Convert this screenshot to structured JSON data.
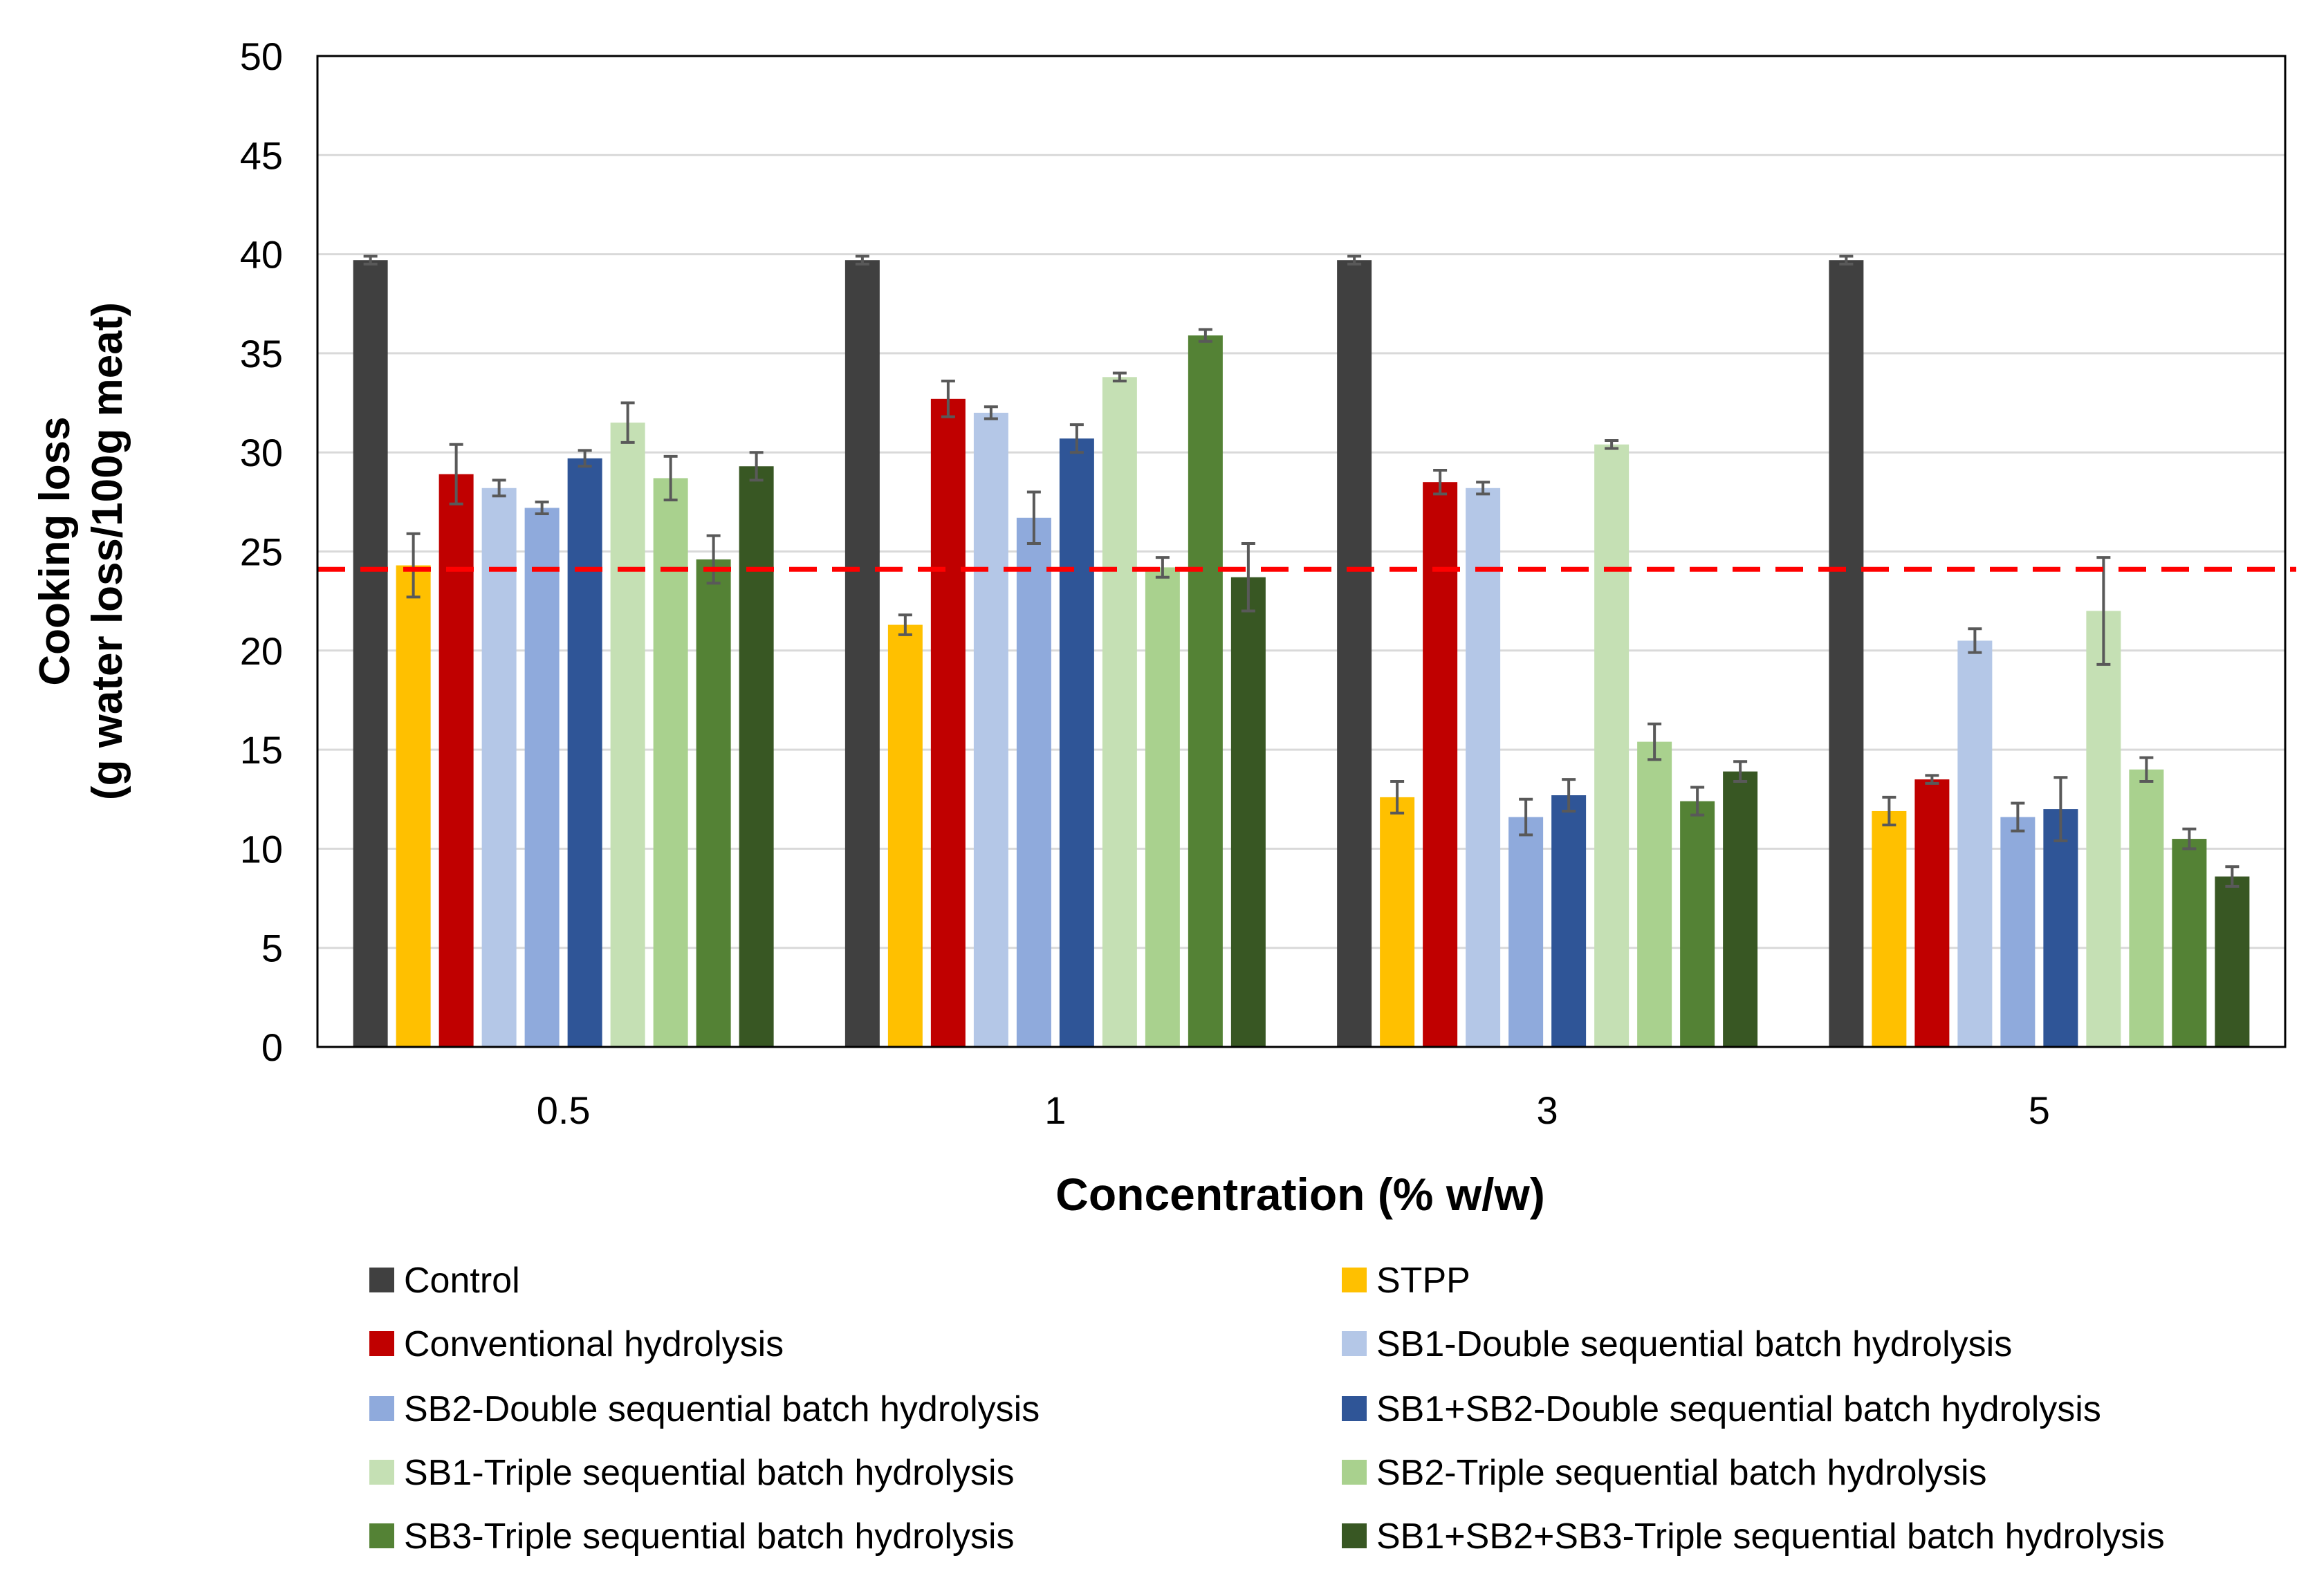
{
  "chart_data": {
    "type": "bar",
    "title": "",
    "xlabel": "Concentration (% w/w)",
    "ylabel_line1": "Cooking loss",
    "ylabel_line2": "(g water loss/100g meat)",
    "ylim": [
      0,
      50
    ],
    "yticks": [
      0,
      5,
      10,
      15,
      20,
      25,
      30,
      35,
      40,
      45,
      50
    ],
    "grid": true,
    "legend_position": "bottom",
    "categories": [
      "0.5",
      "1",
      "3",
      "5"
    ],
    "reference_line": {
      "value": 24.1,
      "color": "#FF0000",
      "style": "dashed"
    },
    "series": [
      {
        "name": "Control",
        "color": "#404040",
        "values": [
          39.7,
          39.7,
          39.7,
          39.7
        ],
        "errors": [
          0.2,
          0.2,
          0.2,
          0.2
        ]
      },
      {
        "name": "STPP",
        "color": "#FFC000",
        "values": [
          24.3,
          21.3,
          12.6,
          11.9
        ],
        "errors": [
          1.6,
          0.5,
          0.8,
          0.7
        ]
      },
      {
        "name": "Conventional hydrolysis",
        "color": "#C00000",
        "values": [
          28.9,
          32.7,
          28.5,
          13.5
        ],
        "errors": [
          1.5,
          0.9,
          0.6,
          0.2
        ]
      },
      {
        "name": "SB1-Double sequential batch hydrolysis",
        "color": "#B4C7E7",
        "values": [
          28.2,
          32.0,
          28.2,
          20.5
        ],
        "errors": [
          0.4,
          0.3,
          0.3,
          0.6
        ]
      },
      {
        "name": "SB2-Double sequential batch hydrolysis",
        "color": "#8FAADC",
        "values": [
          27.2,
          26.7,
          11.6,
          11.6
        ],
        "errors": [
          0.3,
          1.3,
          0.9,
          0.7
        ]
      },
      {
        "name": "SB1+SB2-Double sequential batch hydrolysis",
        "color": "#2F5597",
        "values": [
          29.7,
          30.7,
          12.7,
          12.0
        ],
        "errors": [
          0.4,
          0.7,
          0.8,
          1.6
        ]
      },
      {
        "name": "SB1-Triple sequential batch hydrolysis",
        "color": "#C5E0B4",
        "values": [
          31.5,
          33.8,
          30.4,
          22.0
        ],
        "errors": [
          1.0,
          0.2,
          0.2,
          2.7
        ]
      },
      {
        "name": "SB2-Triple sequential batch hydrolysis",
        "color": "#A9D18E",
        "values": [
          28.7,
          24.2,
          15.4,
          14.0
        ],
        "errors": [
          1.1,
          0.5,
          0.9,
          0.6
        ]
      },
      {
        "name": "SB3-Triple sequential batch hydrolysis",
        "color": "#548235",
        "values": [
          24.6,
          35.9,
          12.4,
          10.5
        ],
        "errors": [
          1.2,
          0.3,
          0.7,
          0.5
        ]
      },
      {
        "name": "SB1+SB2+SB3-Triple sequential batch hydrolysis",
        "color": "#385723",
        "values": [
          29.3,
          23.7,
          13.9,
          8.6
        ],
        "errors": [
          0.7,
          1.7,
          0.5,
          0.5
        ]
      }
    ]
  }
}
